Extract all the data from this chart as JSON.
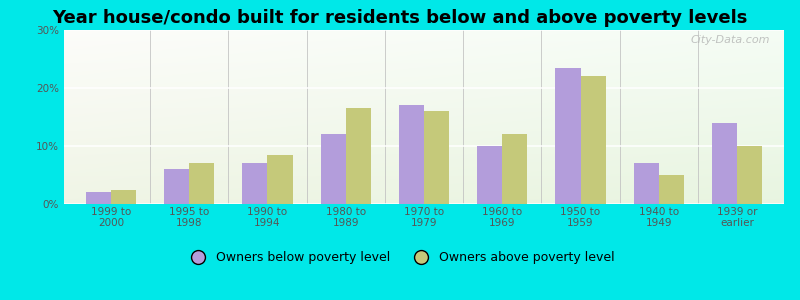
{
  "title": "Year house/condo built for residents below and above poverty levels",
  "categories": [
    "1999 to\n2000",
    "1995 to\n1998",
    "1990 to\n1994",
    "1980 to\n1989",
    "1970 to\n1979",
    "1960 to\n1969",
    "1950 to\n1959",
    "1940 to\n1949",
    "1939 or\nearlier"
  ],
  "below_poverty": [
    2.0,
    6.0,
    7.0,
    12.0,
    17.0,
    10.0,
    23.5,
    7.0,
    14.0
  ],
  "above_poverty": [
    2.5,
    7.0,
    8.5,
    16.5,
    16.0,
    12.0,
    22.0,
    5.0,
    10.0
  ],
  "below_color": "#b39ddb",
  "above_color": "#c5c97a",
  "bg_color_outer": "#00e8e8",
  "yticks": [
    0,
    10,
    20,
    30
  ],
  "ylim": [
    0,
    30
  ],
  "title_fontsize": 13,
  "tick_fontsize": 7.5,
  "tick_color": "#555555",
  "legend_below_label": "Owners below poverty level",
  "legend_above_label": "Owners above poverty level",
  "watermark": "City-Data.com"
}
